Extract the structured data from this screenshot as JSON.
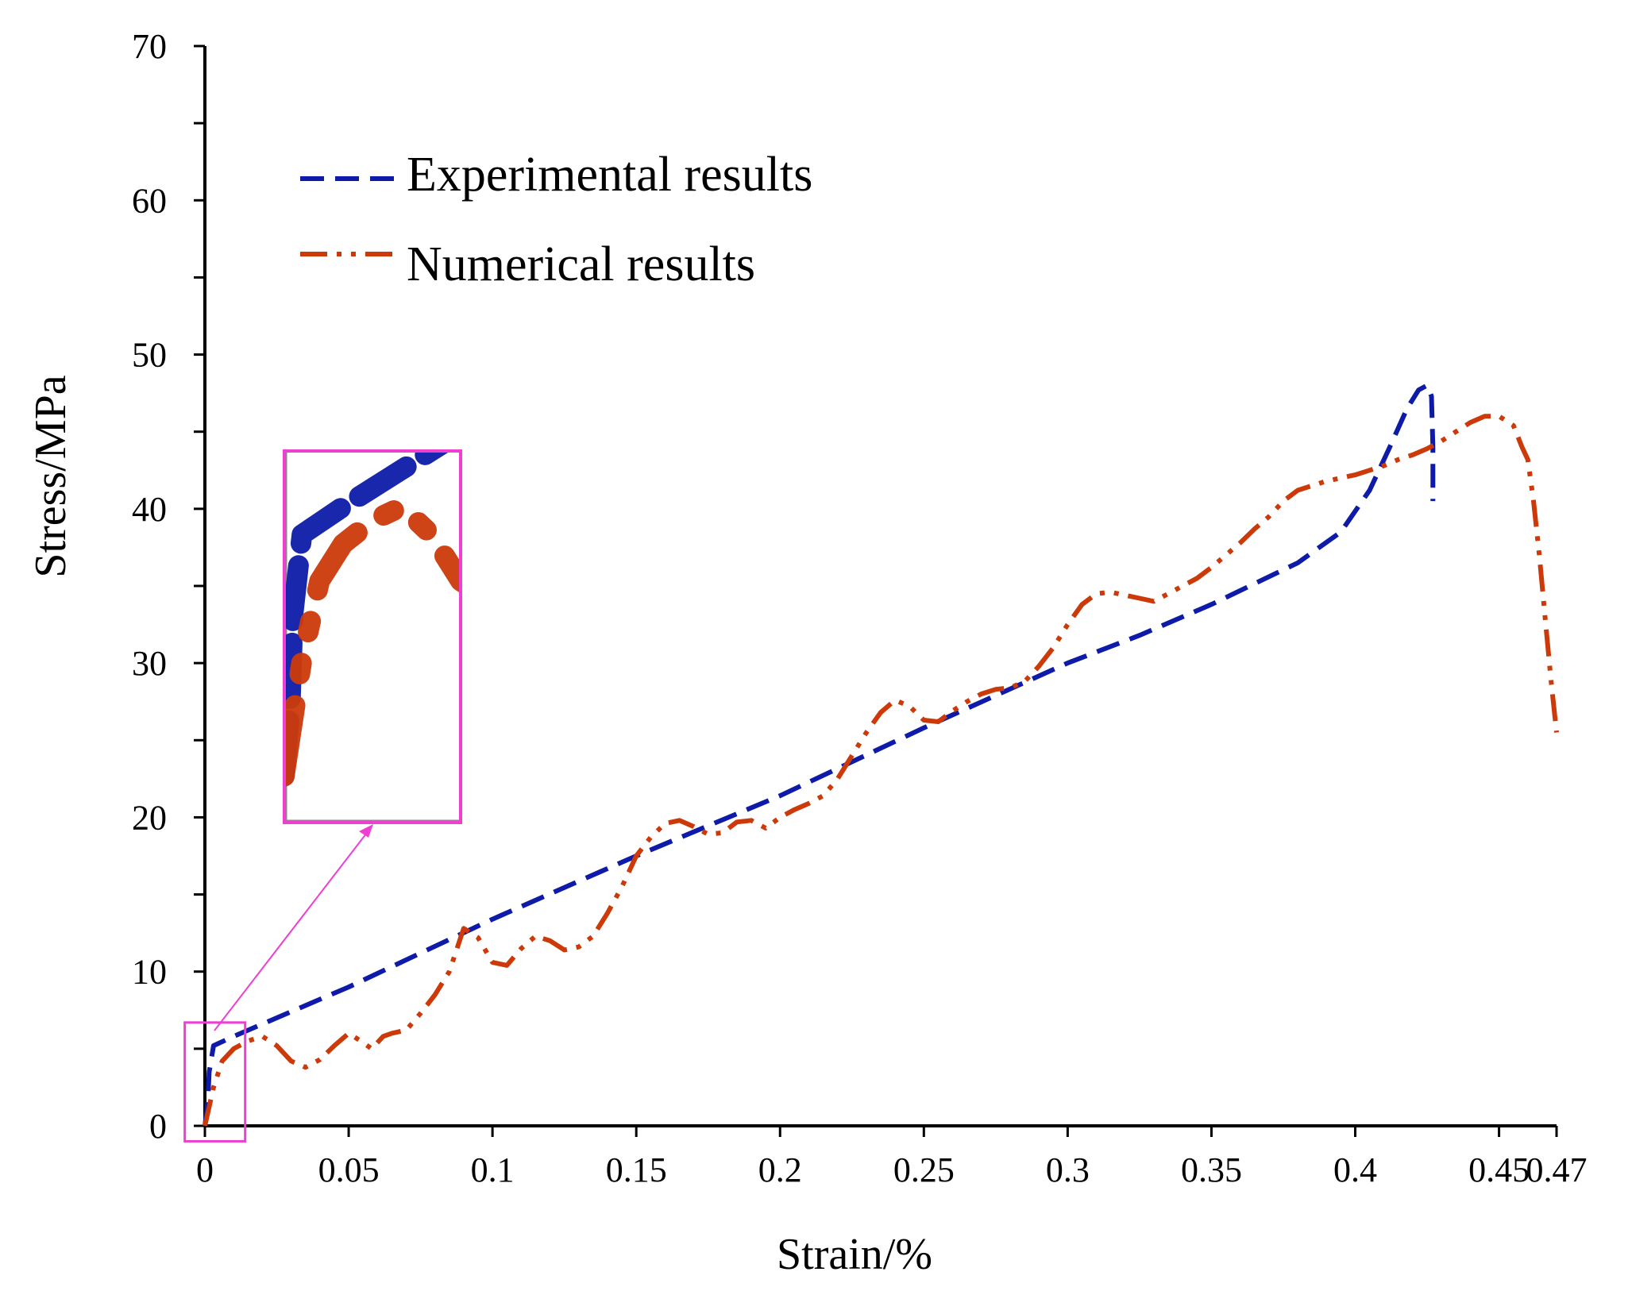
{
  "chart_data": {
    "type": "line",
    "xlabel": "Strain/%",
    "ylabel": "Stress/MPa",
    "xlim": [
      0,
      0.47
    ],
    "ylim": [
      0,
      70
    ],
    "x_ticks": [
      0,
      0.05,
      0.1,
      0.15,
      0.2,
      0.25,
      0.3,
      0.35,
      0.4,
      0.45,
      0.47
    ],
    "x_tick_labels": [
      "0",
      "0.05",
      "0.1",
      "0.15",
      "0.2",
      "0.25",
      "0.3",
      "0.35",
      "0.4",
      "0.45",
      "0.47"
    ],
    "y_ticks": [
      0,
      10,
      20,
      30,
      40,
      50,
      60,
      70
    ],
    "y_tick_labels": [
      "0",
      "10",
      "20",
      "30",
      "40",
      "50",
      "60",
      "70"
    ],
    "y_minor_tick_step": 5,
    "grid": false,
    "legend_position": "top-left",
    "series": [
      {
        "name": "Experimental results",
        "color": "#0d1ba8",
        "dash": "dashed",
        "x": [
          0,
          0.001,
          0.0015,
          0.003,
          0.01,
          0.05,
          0.1,
          0.15,
          0.2,
          0.25,
          0.3,
          0.325,
          0.35,
          0.38,
          0.395,
          0.405,
          0.412,
          0.418,
          0.422,
          0.425,
          0.4265,
          0.427,
          0.427
        ],
        "y": [
          0,
          1.5,
          3.5,
          5.2,
          5.8,
          9.0,
          13.4,
          17.5,
          21.4,
          25.8,
          30.0,
          31.8,
          33.8,
          36.5,
          38.5,
          41.2,
          44.0,
          46.5,
          47.7,
          48.0,
          47.3,
          44.0,
          40.5
        ]
      },
      {
        "name": "Numerical results",
        "color": "#cc3a0a",
        "dash": "dash-dot-dot",
        "x": [
          0,
          0.003,
          0.006,
          0.01,
          0.015,
          0.02,
          0.025,
          0.03,
          0.035,
          0.04,
          0.045,
          0.05,
          0.055,
          0.058,
          0.062,
          0.065,
          0.07,
          0.075,
          0.08,
          0.085,
          0.09,
          0.095,
          0.1,
          0.105,
          0.11,
          0.115,
          0.12,
          0.125,
          0.13,
          0.135,
          0.14,
          0.145,
          0.15,
          0.155,
          0.16,
          0.165,
          0.17,
          0.175,
          0.18,
          0.185,
          0.19,
          0.195,
          0.2,
          0.205,
          0.21,
          0.215,
          0.22,
          0.225,
          0.23,
          0.235,
          0.24,
          0.245,
          0.25,
          0.255,
          0.26,
          0.265,
          0.27,
          0.275,
          0.28,
          0.285,
          0.29,
          0.295,
          0.3,
          0.305,
          0.31,
          0.315,
          0.32,
          0.325,
          0.33,
          0.335,
          0.34,
          0.345,
          0.35,
          0.355,
          0.36,
          0.365,
          0.37,
          0.375,
          0.38,
          0.385,
          0.39,
          0.395,
          0.4,
          0.405,
          0.41,
          0.415,
          0.42,
          0.425,
          0.43,
          0.435,
          0.44,
          0.445,
          0.45,
          0.455,
          0.458,
          0.46,
          0.462,
          0.464,
          0.466,
          0.468,
          0.47
        ],
        "y": [
          0,
          2.5,
          4.2,
          5.0,
          5.5,
          5.8,
          5.2,
          4.2,
          3.8,
          4.3,
          5.2,
          6.0,
          5.4,
          5.0,
          5.8,
          6.0,
          6.2,
          7.3,
          8.5,
          10.0,
          12.8,
          12.2,
          10.6,
          10.4,
          11.5,
          12.3,
          12.0,
          11.4,
          11.6,
          12.3,
          13.8,
          15.5,
          17.5,
          18.7,
          19.6,
          19.8,
          19.4,
          18.9,
          19.0,
          19.7,
          19.8,
          19.3,
          20.0,
          20.5,
          20.9,
          21.4,
          22.5,
          24.0,
          25.5,
          26.8,
          27.6,
          27.2,
          26.3,
          26.2,
          26.9,
          27.5,
          28.0,
          28.3,
          28.4,
          28.8,
          29.8,
          31.0,
          32.5,
          33.8,
          34.5,
          34.6,
          34.4,
          34.2,
          34.0,
          34.5,
          35.0,
          35.5,
          36.2,
          37.0,
          37.8,
          38.7,
          39.5,
          40.5,
          41.2,
          41.5,
          41.8,
          42.0,
          42.2,
          42.5,
          42.8,
          43.2,
          43.5,
          43.9,
          44.4,
          45.0,
          45.6,
          46.0,
          46.0,
          45.4,
          44.0,
          43.2,
          40.5,
          37.0,
          33.0,
          29.0,
          25.5
        ]
      }
    ],
    "inset": {
      "source_box": {
        "x": [
          -0.007,
          0.014
        ],
        "y": [
          -1.0,
          6.7
        ]
      },
      "zoom_x": [
        0,
        0.03
      ],
      "zoom_y": [
        -1,
        7
      ],
      "border_color": "#ee3fd0"
    }
  }
}
